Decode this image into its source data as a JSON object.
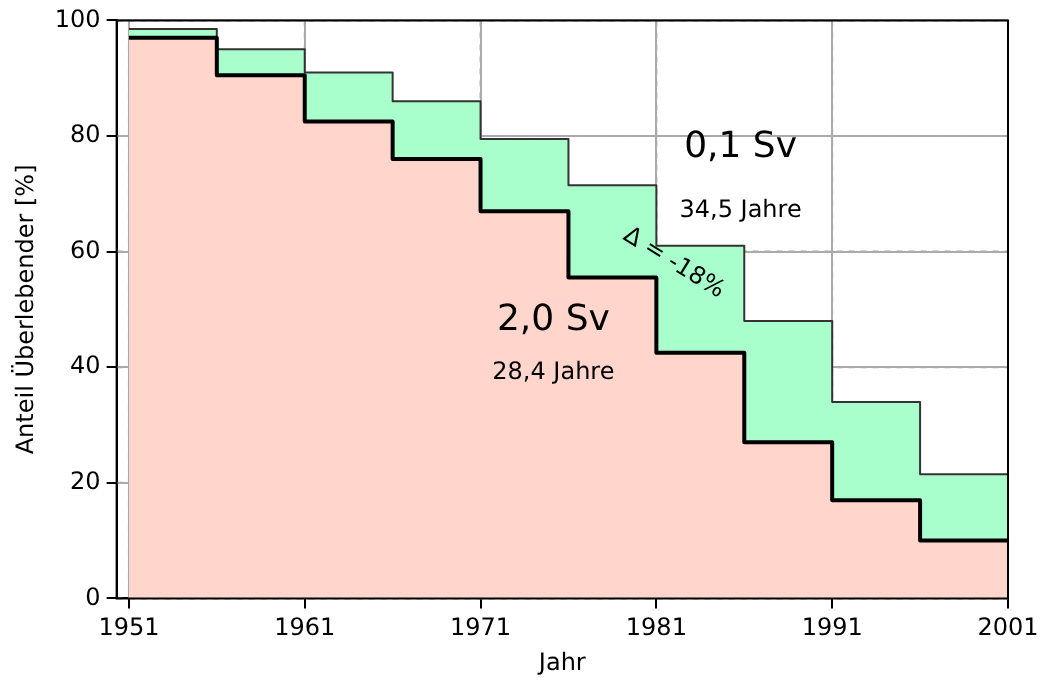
{
  "chart_data": {
    "type": "step",
    "xlabel": "Jahr",
    "ylabel": "Anteil Überlebender [%]",
    "x": [
      1951,
      1956,
      1961,
      1966,
      1971,
      1976,
      1981,
      1986,
      1991,
      1996,
      2001
    ],
    "series": [
      {
        "type": "area",
        "color": "#ffd5cc",
        "values": [
          97,
          90.5,
          82.5,
          76,
          67,
          55.5,
          42.5,
          27,
          17,
          10,
          10
        ]
      },
      {
        "type": "area",
        "color": "#a8ffcc",
        "values": [
          98.5,
          95,
          91,
          86,
          79.5,
          71.5,
          61,
          48,
          34,
          21.5,
          21.5
        ]
      },
      {
        "type": "step",
        "color": "#000000",
        "values": [
          97,
          90.5,
          82.5,
          76,
          67,
          55.5,
          42.5,
          27,
          17,
          10,
          10
        ]
      },
      {
        "type": "step",
        "color": "#333333",
        "values": [
          98.5,
          95,
          91,
          86,
          79.5,
          71.5,
          61,
          48,
          34,
          21.5,
          21.5
        ]
      }
    ],
    "xlim": [
      1950.3,
      2001
    ],
    "xticks": [
      1951,
      1961,
      1971,
      1981,
      1991,
      2001
    ],
    "ylim": [
      0,
      100
    ],
    "yticks": [
      0,
      20,
      40,
      60,
      80,
      100
    ],
    "grid": true,
    "annotations": [
      "0,1 Sv",
      "34,5 Jahre",
      "2,0 Sv",
      "28,4 Jahre",
      "Δ = -18%"
    ]
  }
}
